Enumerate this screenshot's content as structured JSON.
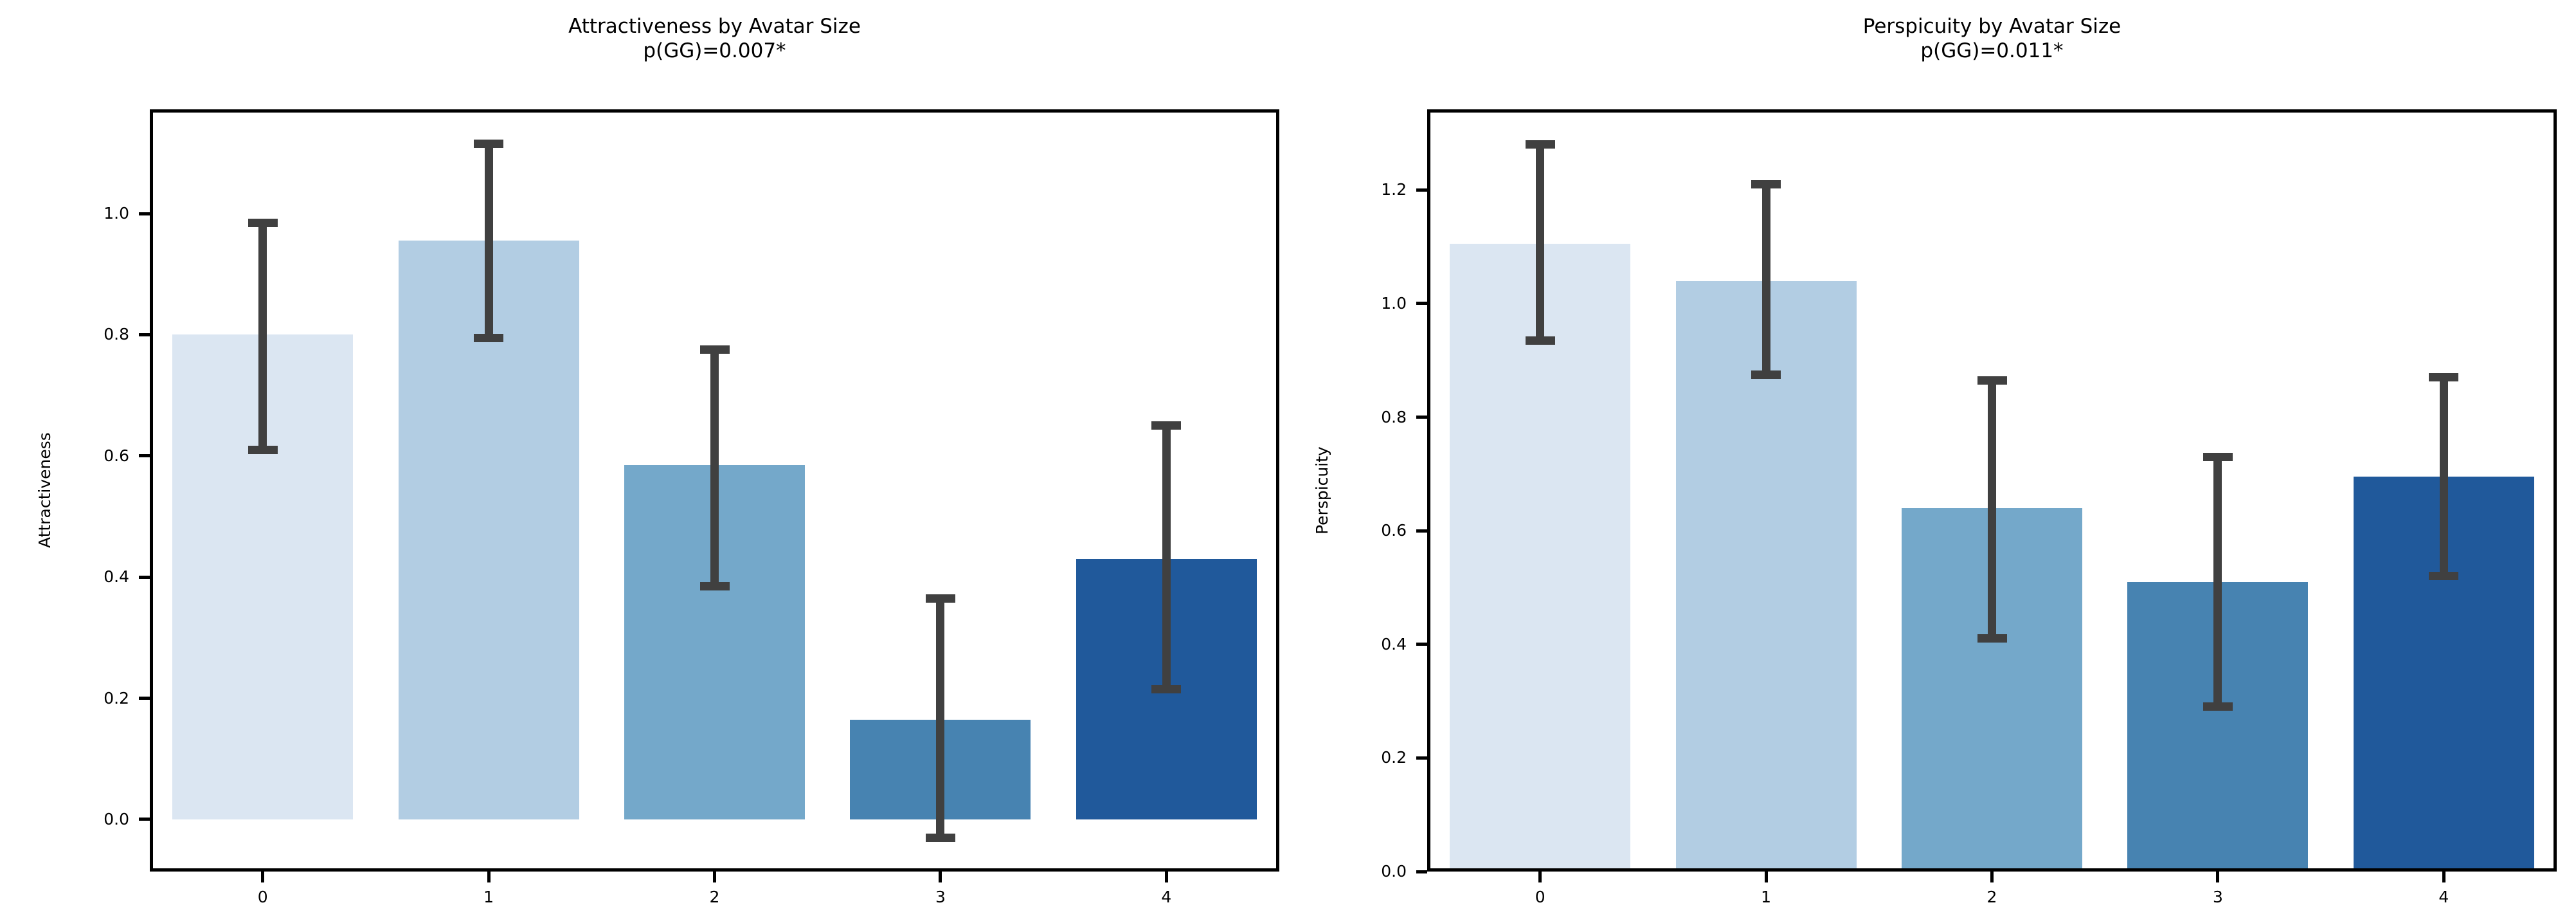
{
  "figure": {
    "background": "#ffffff",
    "text_color": "#000000",
    "error_bar_color": "#404040",
    "bar_colors": [
      "#dbe6f2",
      "#b2cde3",
      "#74a8ca",
      "#4783b1",
      "#20599b"
    ]
  },
  "chart_data": [
    {
      "type": "bar",
      "title": "Attractiveness by Avatar Size",
      "subtitle": "p(GG)=0.007*",
      "xlabel": "",
      "ylabel": "Attractiveness",
      "categories": [
        "0",
        "1",
        "2",
        "3",
        "4"
      ],
      "values": [
        0.8,
        0.955,
        0.585,
        0.165,
        0.43
      ],
      "error_low": [
        0.61,
        0.795,
        0.385,
        -0.03,
        0.215
      ],
      "error_high": [
        0.985,
        1.115,
        0.775,
        0.365,
        0.65
      ],
      "yticks": [
        0.0,
        0.2,
        0.4,
        0.6,
        0.8,
        1.0
      ],
      "ylim": [
        -0.086,
        1.172
      ],
      "grid": false,
      "legend": "none"
    },
    {
      "type": "bar",
      "title": "Perspicuity by Avatar Size",
      "subtitle": "p(GG)=0.011*",
      "xlabel": "",
      "ylabel": "Perspicuity",
      "categories": [
        "0",
        "1",
        "2",
        "3",
        "4"
      ],
      "values": [
        1.105,
        1.04,
        0.64,
        0.51,
        0.695
      ],
      "error_low": [
        0.935,
        0.875,
        0.41,
        0.29,
        0.52
      ],
      "error_high": [
        1.28,
        1.21,
        0.865,
        0.73,
        0.87
      ],
      "yticks": [
        0.0,
        0.2,
        0.4,
        0.6,
        0.8,
        1.0,
        1.2
      ],
      "ylim": [
        0.0,
        1.342
      ],
      "grid": false,
      "legend": "none"
    }
  ]
}
